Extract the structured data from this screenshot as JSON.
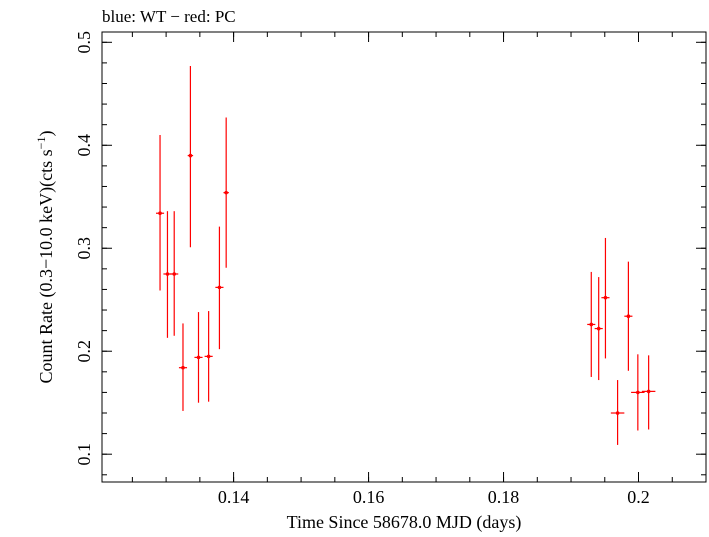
{
  "header": {
    "legend_text": "blue: WT − red: PC"
  },
  "chart_data": {
    "type": "scatter",
    "title": "",
    "xlabel": "Time Since 58678.0 MJD (days)",
    "ylabel": "Count Rate (0.3−10.0 keV)(cts s",
    "ylabel_sup": "−1",
    "ylabel_close": ")",
    "xlim": [
      0.1205,
      0.21
    ],
    "ylim": [
      0.073,
      0.51
    ],
    "x_ticks": [
      0.14,
      0.16,
      0.18,
      0.2
    ],
    "x_tick_labels": [
      "0.14",
      "0.16",
      "0.18",
      "0.2"
    ],
    "y_ticks": [
      0.1,
      0.2,
      0.3,
      0.4,
      0.5
    ],
    "y_tick_labels": [
      "0.1",
      "0.2",
      "0.3",
      "0.4",
      "0.5"
    ],
    "x_minor_step": 0.005,
    "y_minor_step": 0.02,
    "grid": false,
    "legend_position": "top-left",
    "colors": {
      "PC": "#ff0000",
      "axes": "#000000"
    },
    "series": [
      {
        "name": "PC",
        "x": [
          0.1291,
          0.1302,
          0.1312,
          0.1325,
          0.1336,
          0.1348,
          0.1363,
          0.1379,
          0.1389,
          0.193,
          0.1941,
          0.1951,
          0.1969,
          0.1985,
          0.1999,
          0.2015
        ],
        "y": [
          0.334,
          0.275,
          0.275,
          0.184,
          0.39,
          0.194,
          0.195,
          0.262,
          0.354,
          0.226,
          0.222,
          0.252,
          0.14,
          0.234,
          0.16,
          0.161
        ],
        "y_err_low": [
          0.259,
          0.213,
          0.215,
          0.142,
          0.301,
          0.15,
          0.151,
          0.202,
          0.281,
          0.175,
          0.172,
          0.193,
          0.109,
          0.181,
          0.123,
          0.124
        ],
        "y_err_high": [
          0.41,
          0.336,
          0.336,
          0.227,
          0.477,
          0.238,
          0.239,
          0.321,
          0.427,
          0.277,
          0.272,
          0.31,
          0.172,
          0.287,
          0.197,
          0.196
        ],
        "x_halfwidth": [
          0.0006,
          0.0006,
          0.0006,
          0.0006,
          0.0004,
          0.0006,
          0.0006,
          0.0006,
          0.0004,
          0.0006,
          0.0006,
          0.0006,
          0.001,
          0.0006,
          0.001,
          0.001
        ]
      }
    ]
  }
}
